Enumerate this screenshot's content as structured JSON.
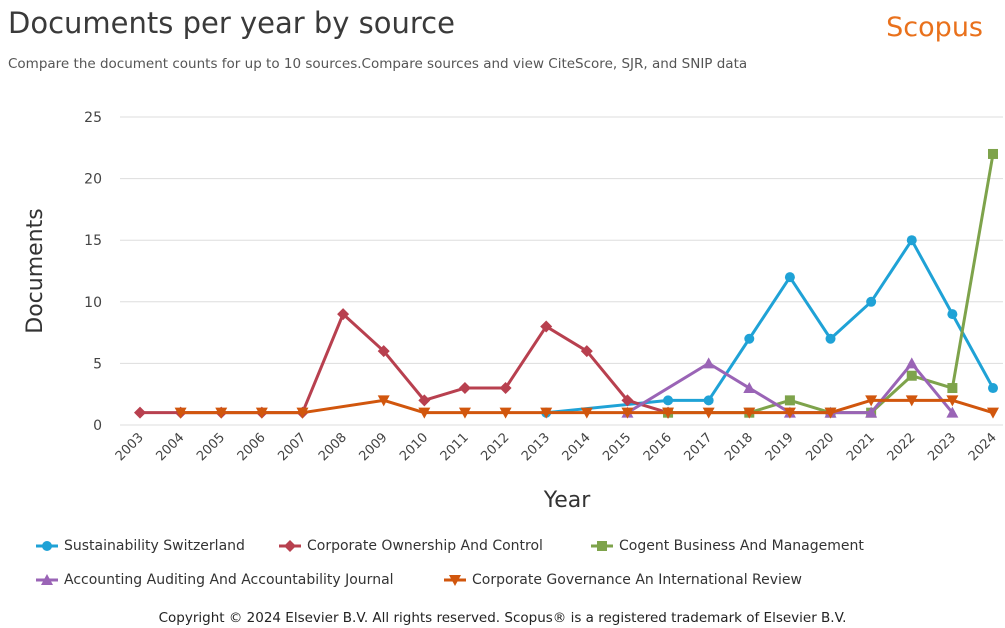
{
  "header": {
    "title": "Documents per year by source",
    "subtitle": "Compare the document counts for up to 10 sources.Compare sources and view CiteScore, SJR, and SNIP data",
    "brand": "Scopus"
  },
  "footer": {
    "copyright": "Copyright © 2024 Elsevier B.V. All rights reserved. Scopus® is a registered trademark of Elsevier B.V."
  },
  "chart_data": {
    "type": "line",
    "xlabel": "Year",
    "ylabel": "Documents",
    "ylim": [
      0,
      25
    ],
    "yticks": [
      0,
      5,
      10,
      15,
      20,
      25
    ],
    "categories": [
      "2003",
      "2004",
      "2005",
      "2006",
      "2007",
      "2008",
      "2009",
      "2010",
      "2011",
      "2012",
      "2013",
      "2014",
      "2015",
      "2016",
      "2017",
      "2018",
      "2019",
      "2020",
      "2021",
      "2022",
      "2023",
      "2024"
    ],
    "grid": true,
    "legend_position": "bottom",
    "series": [
      {
        "name": "Sustainability Switzerland",
        "color": "#1fa2d6",
        "marker": "circle",
        "points": [
          [
            "2013",
            1
          ],
          [
            "2016",
            2
          ],
          [
            "2017",
            2
          ],
          [
            "2018",
            7
          ],
          [
            "2019",
            12
          ],
          [
            "2020",
            7
          ],
          [
            "2021",
            10
          ],
          [
            "2022",
            15
          ],
          [
            "2023",
            9
          ],
          [
            "2024",
            3
          ]
        ]
      },
      {
        "name": "Corporate Ownership And Control",
        "color": "#b8404f",
        "marker": "diamond",
        "points": [
          [
            "2003",
            1
          ],
          [
            "2004",
            1
          ],
          [
            "2005",
            1
          ],
          [
            "2006",
            1
          ],
          [
            "2007",
            1
          ],
          [
            "2008",
            9
          ],
          [
            "2009",
            6
          ],
          [
            "2010",
            2
          ],
          [
            "2011",
            3
          ],
          [
            "2012",
            3
          ],
          [
            "2013",
            8
          ],
          [
            "2014",
            6
          ],
          [
            "2015",
            2
          ],
          [
            "2016",
            1
          ]
        ]
      },
      {
        "name": "Cogent Business And Management",
        "color": "#7ea34b",
        "marker": "square",
        "points": [
          [
            "2016",
            1
          ],
          [
            "2018",
            1
          ],
          [
            "2019",
            2
          ],
          [
            "2020",
            1
          ],
          [
            "2021",
            1
          ],
          [
            "2022",
            4
          ],
          [
            "2023",
            3
          ],
          [
            "2024",
            22
          ]
        ]
      },
      {
        "name": "Accounting Auditing And Accountability Journal",
        "color": "#9a64b6",
        "marker": "triangle-up",
        "points": [
          [
            "2015",
            1
          ],
          [
            "2017",
            5
          ],
          [
            "2018",
            3
          ],
          [
            "2019",
            1
          ],
          [
            "2020",
            1
          ],
          [
            "2021",
            1
          ],
          [
            "2022",
            5
          ],
          [
            "2023",
            1
          ]
        ]
      },
      {
        "name": "Corporate Governance An International Review",
        "color": "#d1560d",
        "marker": "triangle-down",
        "points": [
          [
            "2004",
            1
          ],
          [
            "2005",
            1
          ],
          [
            "2006",
            1
          ],
          [
            "2007",
            1
          ],
          [
            "2009",
            2
          ],
          [
            "2010",
            1
          ],
          [
            "2011",
            1
          ],
          [
            "2012",
            1
          ],
          [
            "2013",
            1
          ],
          [
            "2014",
            1
          ],
          [
            "2015",
            1
          ],
          [
            "2016",
            1
          ],
          [
            "2017",
            1
          ],
          [
            "2018",
            1
          ],
          [
            "2019",
            1
          ],
          [
            "2020",
            1
          ],
          [
            "2021",
            2
          ],
          [
            "2022",
            2
          ],
          [
            "2023",
            2
          ],
          [
            "2024",
            1
          ]
        ]
      }
    ]
  }
}
